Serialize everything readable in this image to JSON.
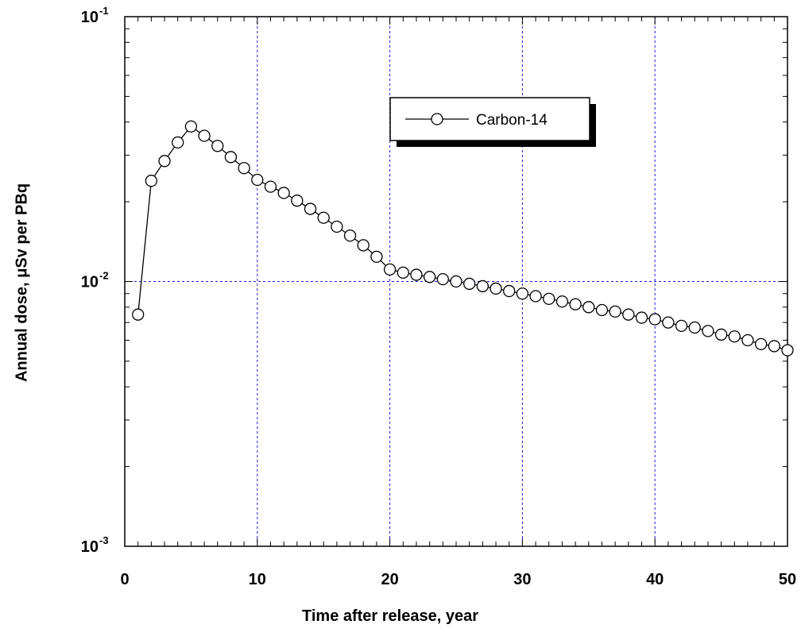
{
  "chart_data": {
    "type": "line",
    "xlabel": "Time after release, year",
    "ylabel_prefix": "Annual dose, ",
    "ylabel_mu": "μ",
    "ylabel_suffix": "Sv per PBq",
    "xlim": [
      0,
      50
    ],
    "ylim": [
      0.001,
      0.1
    ],
    "yscale": "log",
    "grid": true,
    "x_ticks": [
      "0",
      "10",
      "20",
      "30",
      "40",
      "50"
    ],
    "y_ticks": [
      {
        "base": "10",
        "exp": "-1",
        "value": 0.1
      },
      {
        "base": "10",
        "exp": "-2",
        "value": 0.01
      },
      {
        "base": "10",
        "exp": "-3",
        "value": 0.001
      }
    ],
    "legend": {
      "position": "top-right",
      "entries": [
        "Carbon-14"
      ]
    },
    "series": [
      {
        "name": "Carbon-14",
        "marker": "open-circle",
        "color": "#000000",
        "x": [
          1,
          2,
          3,
          4,
          5,
          6,
          7,
          8,
          9,
          10,
          11,
          12,
          13,
          14,
          15,
          16,
          17,
          18,
          19,
          20,
          21,
          22,
          23,
          24,
          25,
          26,
          27,
          28,
          29,
          30,
          31,
          32,
          33,
          34,
          35,
          36,
          37,
          38,
          39,
          40,
          41,
          42,
          43,
          44,
          45,
          46,
          47,
          48,
          49,
          50
        ],
        "y": [
          0.0075,
          0.024,
          0.0285,
          0.0335,
          0.0385,
          0.0355,
          0.0325,
          0.0295,
          0.0268,
          0.0242,
          0.0228,
          0.0216,
          0.0202,
          0.0188,
          0.0174,
          0.0161,
          0.0149,
          0.0137,
          0.0124,
          0.0111,
          0.0108,
          0.0106,
          0.0104,
          0.0102,
          0.01,
          0.0098,
          0.0096,
          0.0094,
          0.0092,
          0.009,
          0.0088,
          0.0086,
          0.0084,
          0.0082,
          0.008,
          0.0078,
          0.0077,
          0.0075,
          0.0073,
          0.0072,
          0.007,
          0.0068,
          0.0067,
          0.0065,
          0.0063,
          0.0062,
          0.006,
          0.0058,
          0.0057,
          0.0055
        ]
      }
    ]
  },
  "colors": {
    "grid": "#1a1adc",
    "axis": "#000000",
    "background": "#ffffff"
  }
}
